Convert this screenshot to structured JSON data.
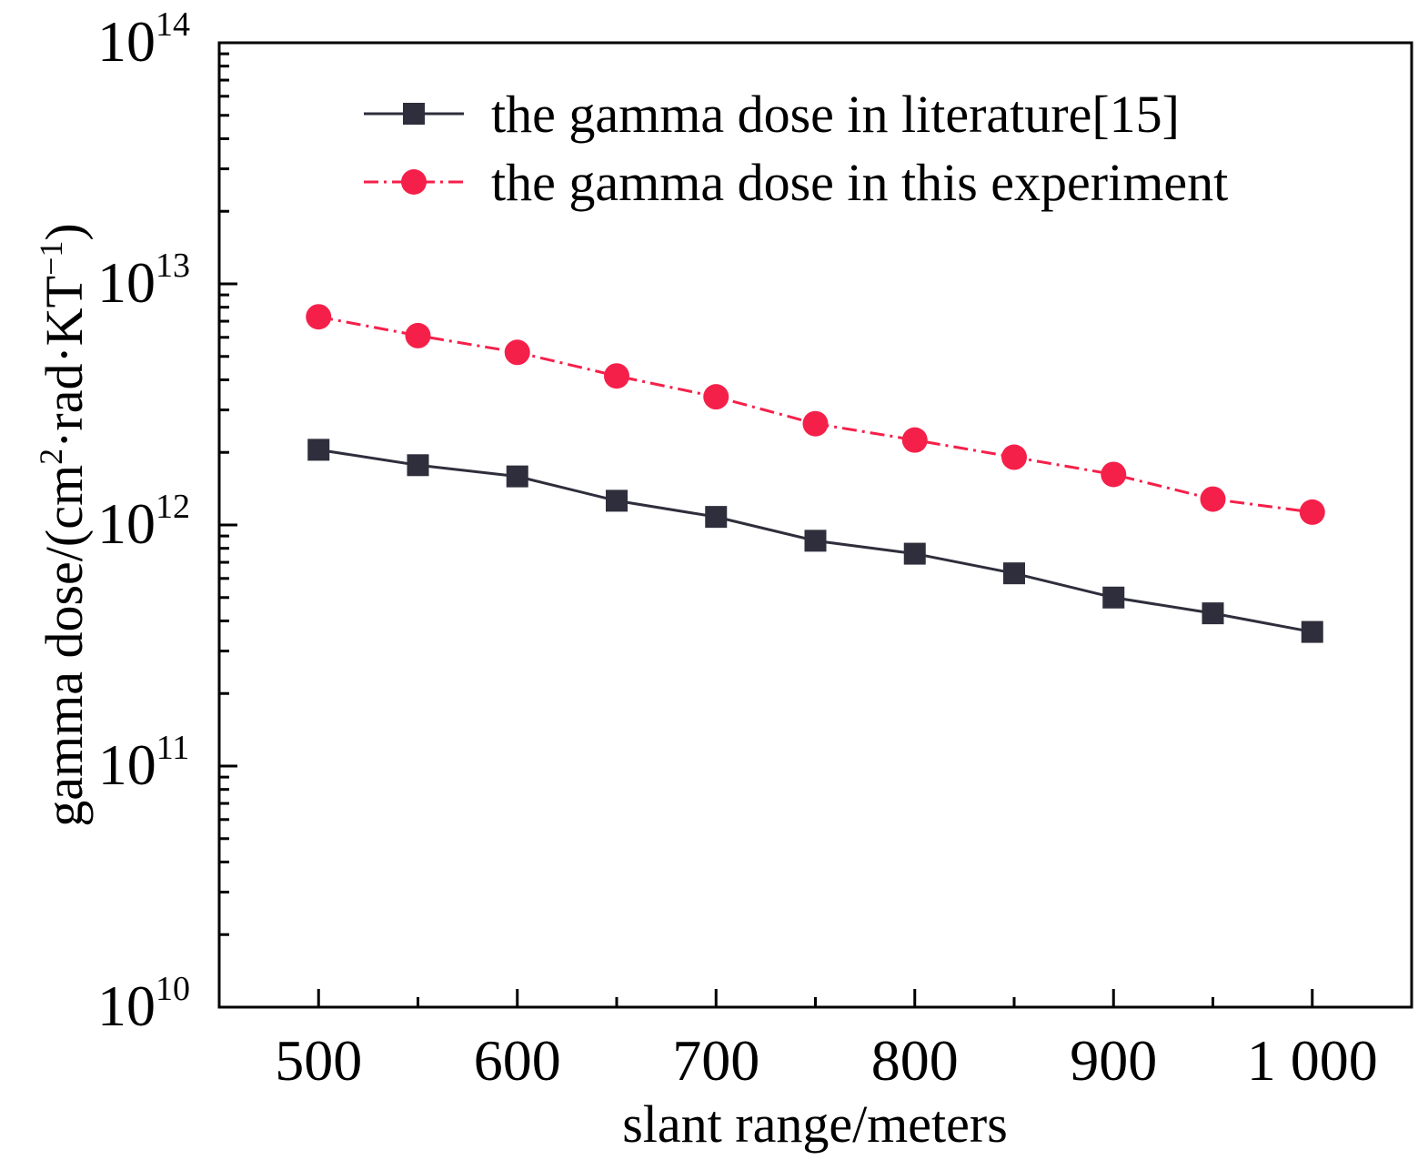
{
  "chart_data": {
    "type": "line",
    "title": "",
    "xlabel": "slant range/meters",
    "ylabel": {
      "prefix": "gamma dose/(cm",
      "sup1": "2",
      "middle": "·rad·KT",
      "sup2": "−1",
      "suffix": ")"
    },
    "x": [
      500,
      550,
      600,
      650,
      700,
      750,
      800,
      850,
      900,
      950,
      1000
    ],
    "xlim": [
      450,
      1050
    ],
    "xticks": [
      {
        "value": 500,
        "label": "500"
      },
      {
        "value": 600,
        "label": "600"
      },
      {
        "value": 700,
        "label": "700"
      },
      {
        "value": 800,
        "label": "800"
      },
      {
        "value": 900,
        "label": "900"
      },
      {
        "value": 1000,
        "label": "1 000"
      }
    ],
    "yscale": "log",
    "ylim": [
      10000000000.0,
      100000000000000.0
    ],
    "yticks": [
      {
        "value": 10000000000.0,
        "base": "10",
        "exp": "10"
      },
      {
        "value": 100000000000.0,
        "base": "10",
        "exp": "11"
      },
      {
        "value": 1000000000000.0,
        "base": "10",
        "exp": "12"
      },
      {
        "value": 10000000000000.0,
        "base": "10",
        "exp": "13"
      },
      {
        "value": 100000000000000.0,
        "base": "10",
        "exp": "14"
      }
    ],
    "grid": false,
    "legend_position": "top-right",
    "series": [
      {
        "name": "the gamma dose in literature[15]",
        "marker": "square",
        "line_style": "solid",
        "color": "#2e2e3c",
        "values": [
          2050000000000.0,
          1770000000000.0,
          1590000000000.0,
          1260000000000.0,
          1080000000000.0,
          860000000000.0,
          760000000000.0,
          630000000000.0,
          500000000000.0,
          430000000000.0,
          360000000000.0
        ]
      },
      {
        "name": "the gamma dose in this experiment",
        "marker": "circle",
        "line_style": "dash-dot",
        "color": "#f5204a",
        "values": [
          7300000000000.0,
          6100000000000.0,
          5200000000000.0,
          4150000000000.0,
          3400000000000.0,
          2630000000000.0,
          2250000000000.0,
          1910000000000.0,
          1620000000000.0,
          1280000000000.0,
          1130000000000.0
        ]
      }
    ]
  }
}
